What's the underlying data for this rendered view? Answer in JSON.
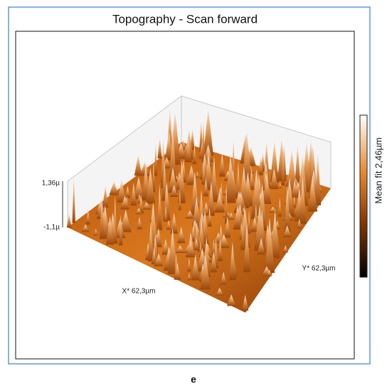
{
  "window": {
    "title": "Topography - Scan forward"
  },
  "plot": {
    "z_max_label": "1,36µ",
    "z_min_label": "-1,1µ",
    "x_axis_label": "X* 62,3µm",
    "y_axis_label": "Y* 62,3µm"
  },
  "colorbar": {
    "label": "Mean fit 2,46µm"
  },
  "caption": "e"
}
